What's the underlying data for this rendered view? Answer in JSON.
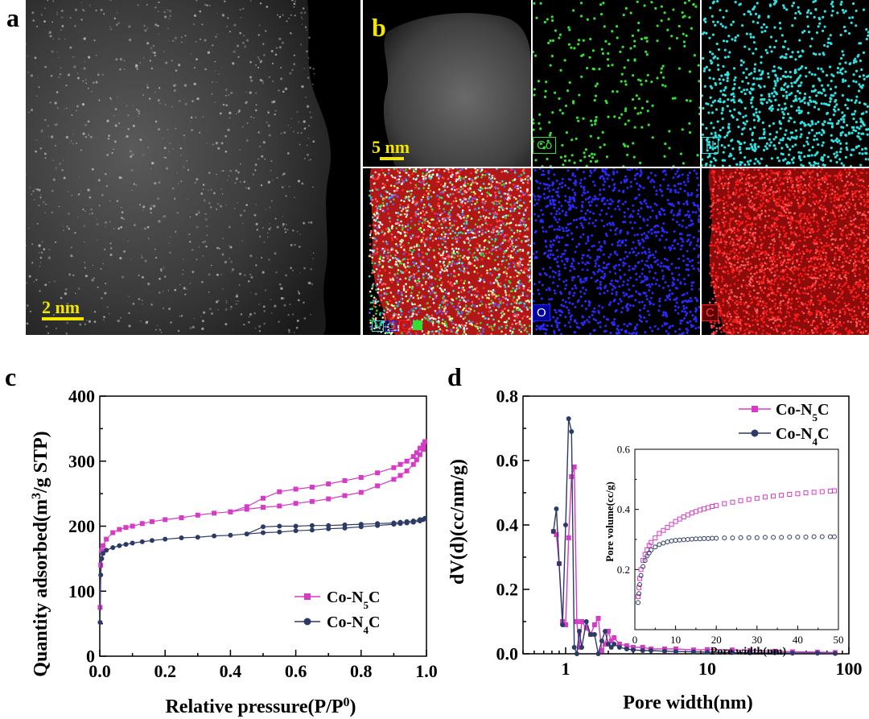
{
  "panels": {
    "a": {
      "letter": "a",
      "scalebar": "2 nm"
    },
    "b": {
      "letter": "b",
      "scalebar": "5 nm",
      "maps": [
        {
          "label": "Co",
          "color": "#33e033"
        },
        {
          "label": "N",
          "color": "#2fe0e0"
        },
        {
          "label": "O",
          "color": "#2020ff"
        },
        {
          "label": "C",
          "color": "#ff1a1a"
        }
      ],
      "overlay_labels": [
        "N",
        "O",
        "C"
      ]
    },
    "c": {
      "letter": "c"
    },
    "d": {
      "letter": "d"
    }
  },
  "legend_c": {
    "s1": "Co-N",
    "s1_sub": "5",
    "s1_tail": "C",
    "s2": "Co-N",
    "s2_sub": "4",
    "s2_tail": "C"
  },
  "legend_d": {
    "s1": "Co-N",
    "s1_sub": "5",
    "s1_tail": "C",
    "s2": "Co-N",
    "s2_sub": "4",
    "s2_tail": "C"
  },
  "axes_c": {
    "ylabel_pre": "Quantity adsorbed(m",
    "ylabel_sup": "3",
    "ylabel_post": "/g STP)",
    "xlabel_pre": "Relative pressure(P/P",
    "xlabel_sup": "0",
    "xlabel_post": ")"
  },
  "axes_d": {
    "ylabel": "dV(d)(cc/nm/g)",
    "xlabel": "Pore width(nm)"
  },
  "axes_inset": {
    "ylabel": "Pore volume(cc/g)",
    "xlabel": "Pore width(nm)"
  },
  "chart_data": [
    {
      "type": "line",
      "panel": "c",
      "xlim": [
        0,
        1.0
      ],
      "ylim": [
        0,
        400
      ],
      "xticks": [
        "0.0",
        "0.2",
        "0.4",
        "0.6",
        "0.8",
        "1.0"
      ],
      "yticks": [
        "0",
        "100",
        "200",
        "300",
        "400"
      ],
      "series": [
        {
          "color": "#d63bc8",
          "marker": "square",
          "x": [
            0.001,
            0.003,
            0.006,
            0.01,
            0.02,
            0.04,
            0.06,
            0.08,
            0.1,
            0.13,
            0.16,
            0.2,
            0.25,
            0.3,
            0.35,
            0.4,
            0.45,
            0.5,
            0.55,
            0.6,
            0.65,
            0.7,
            0.75,
            0.8,
            0.85,
            0.9,
            0.92,
            0.94,
            0.96,
            0.97,
            0.98,
            0.99,
            0.995,
            0.99,
            0.98,
            0.97,
            0.96,
            0.94,
            0.92,
            0.9,
            0.85,
            0.8,
            0.75,
            0.7,
            0.65,
            0.6,
            0.55,
            0.5,
            0.45,
            0.4
          ],
          "y": [
            75,
            140,
            162,
            170,
            180,
            190,
            195,
            198,
            200,
            204,
            207,
            210,
            213,
            217,
            220,
            222,
            226,
            229,
            231,
            235,
            238,
            242,
            247,
            252,
            262,
            272,
            278,
            285,
            295,
            302,
            310,
            318,
            330,
            325,
            320,
            313,
            307,
            300,
            295,
            290,
            282,
            275,
            270,
            265,
            260,
            257,
            253,
            243,
            230,
            222
          ]
        },
        {
          "color": "#2b3a67",
          "marker": "circle",
          "x": [
            0.001,
            0.003,
            0.006,
            0.01,
            0.02,
            0.04,
            0.06,
            0.08,
            0.1,
            0.13,
            0.16,
            0.2,
            0.25,
            0.3,
            0.35,
            0.4,
            0.45,
            0.5,
            0.55,
            0.6,
            0.65,
            0.7,
            0.75,
            0.8,
            0.85,
            0.9,
            0.92,
            0.94,
            0.96,
            0.98,
            0.99,
            0.995,
            0.98,
            0.96,
            0.94,
            0.92,
            0.9,
            0.85,
            0.8,
            0.75,
            0.7,
            0.65,
            0.6,
            0.55,
            0.5,
            0.45
          ],
          "y": [
            52,
            125,
            150,
            158,
            163,
            167,
            170,
            172,
            174,
            176,
            178,
            180,
            182,
            183,
            185,
            186,
            188,
            190,
            191,
            193,
            194,
            196,
            197,
            199,
            201,
            203,
            204,
            205,
            206,
            208,
            210,
            212,
            210,
            208,
            207,
            206,
            205,
            204,
            203,
            202,
            201,
            201,
            200,
            200,
            199,
            188
          ]
        }
      ]
    },
    {
      "type": "line",
      "panel": "d",
      "xscale": "log",
      "xlim": [
        0.5,
        100
      ],
      "ylim": [
        0,
        0.8
      ],
      "xticks": [
        "1",
        "10",
        "100"
      ],
      "yticks": [
        "0.0",
        "0.2",
        "0.4",
        "0.6",
        "0.8"
      ],
      "series": [
        {
          "color": "#d63bc8",
          "marker": "square",
          "x": [
            0.82,
            0.86,
            0.9,
            0.95,
            1.0,
            1.05,
            1.1,
            1.15,
            1.2,
            1.25,
            1.3,
            1.4,
            1.5,
            1.6,
            1.7,
            1.8,
            1.9,
            2.0,
            2.1,
            2.2,
            2.4,
            2.7,
            3.0,
            3.5,
            4,
            5,
            6,
            8,
            10,
            15,
            20,
            30,
            40,
            60,
            80
          ],
          "y": [
            0.38,
            0.37,
            0.28,
            0.1,
            0.09,
            0.36,
            0.55,
            0.58,
            0.1,
            0.02,
            0.1,
            0.08,
            0.06,
            0.09,
            0.11,
            0.01,
            0.03,
            0.07,
            0.04,
            0.05,
            0.03,
            0.025,
            0.02,
            0.02,
            0.015,
            0.015,
            0.015,
            0.012,
            0.013,
            0.012,
            0.01,
            0.008,
            0.006,
            0.005,
            0.004
          ]
        },
        {
          "color": "#2b3a67",
          "marker": "circle",
          "x": [
            0.82,
            0.86,
            0.9,
            0.95,
            1.0,
            1.05,
            1.1,
            1.15,
            1.2,
            1.25,
            1.3,
            1.4,
            1.5,
            1.6,
            1.7,
            1.8,
            1.9,
            2.0,
            2.1,
            2.2,
            2.4,
            2.7,
            3.0,
            3.5,
            4,
            5,
            6,
            8,
            10,
            15,
            20,
            30,
            40,
            60,
            80
          ],
          "y": [
            0.38,
            0.45,
            0.28,
            0.09,
            0.4,
            0.73,
            0.69,
            0.02,
            0.0,
            0.07,
            0.02,
            0.1,
            0.06,
            0.06,
            0.0,
            0.04,
            0.07,
            0.03,
            0.02,
            0.03,
            0.02,
            0.015,
            0.012,
            0.01,
            0.01,
            0.008,
            0.007,
            0.006,
            0.005,
            0.004,
            0.003,
            0.003,
            0.002,
            0.002,
            0.001
          ]
        }
      ]
    },
    {
      "type": "scatter",
      "panel": "d-inset",
      "xlim": [
        0,
        50
      ],
      "ylim": [
        0,
        0.6
      ],
      "xticks": [
        "0",
        "10",
        "20",
        "30",
        "40",
        "50"
      ],
      "yticks": [
        "0.2",
        "0.4",
        "0.6"
      ],
      "series": [
        {
          "color": "#d63bc8",
          "marker": "hollow-square",
          "x": [
            0.8,
            1.0,
            1.2,
            1.5,
            2,
            2.5,
            3,
            3.5,
            4,
            5,
            6,
            7,
            8,
            9,
            10,
            11,
            12,
            13,
            14,
            15,
            16,
            17,
            18,
            19,
            20,
            22,
            24,
            26,
            28,
            30,
            32,
            34,
            36,
            38,
            40,
            42,
            44,
            46,
            48,
            49
          ],
          "y": [
            0.11,
            0.14,
            0.17,
            0.2,
            0.23,
            0.25,
            0.265,
            0.28,
            0.29,
            0.305,
            0.32,
            0.33,
            0.34,
            0.35,
            0.36,
            0.368,
            0.375,
            0.382,
            0.388,
            0.393,
            0.398,
            0.402,
            0.406,
            0.41,
            0.413,
            0.419,
            0.424,
            0.429,
            0.433,
            0.437,
            0.441,
            0.444,
            0.447,
            0.45,
            0.452,
            0.455,
            0.457,
            0.459,
            0.461,
            0.462
          ]
        },
        {
          "color": "#2b3a67",
          "marker": "hollow-circle",
          "x": [
            0.8,
            1.0,
            1.2,
            1.5,
            2,
            2.5,
            3,
            3.5,
            4,
            5,
            6,
            7,
            8,
            9,
            10,
            11,
            12,
            13,
            14,
            15,
            16,
            17,
            18,
            19,
            20,
            22,
            24,
            26,
            28,
            30,
            32,
            34,
            36,
            38,
            40,
            42,
            44,
            46,
            48,
            49
          ],
          "y": [
            0.09,
            0.12,
            0.15,
            0.18,
            0.21,
            0.23,
            0.245,
            0.255,
            0.265,
            0.275,
            0.283,
            0.288,
            0.292,
            0.295,
            0.297,
            0.298,
            0.299,
            0.3,
            0.301,
            0.302,
            0.302,
            0.303,
            0.303,
            0.304,
            0.304,
            0.305,
            0.305,
            0.306,
            0.306,
            0.306,
            0.307,
            0.307,
            0.307,
            0.308,
            0.308,
            0.308,
            0.309,
            0.309,
            0.309,
            0.309
          ]
        }
      ]
    }
  ]
}
